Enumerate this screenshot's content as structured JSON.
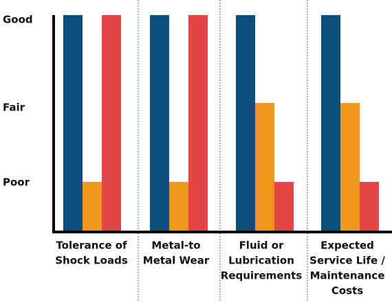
{
  "chart_data": {
    "type": "bar",
    "categories": [
      [
        "Tolerance of",
        "Shock Loads"
      ],
      [
        "Metal-to",
        "Metal Wear"
      ],
      [
        "Fluid or",
        "Lubrication",
        "Requirements"
      ],
      [
        "Expected",
        "Service Life /",
        "Maintenance",
        "Costs"
      ]
    ],
    "y_ticks": [
      "Poor",
      "Fair",
      "Good"
    ],
    "series": [
      {
        "color": "#0b4f7c",
        "values": [
          3,
          3,
          3,
          3
        ]
      },
      {
        "color": "#f0961a",
        "values": [
          1,
          1,
          2,
          2
        ]
      },
      {
        "color": "#e34548",
        "values": [
          3,
          3,
          1,
          1
        ]
      }
    ],
    "ylim": [
      0,
      3
    ],
    "grid": false,
    "separators": "dotted vertical lines between categories",
    "colors": {
      "axis": "#000000",
      "separator": "#2f6d8f",
      "text": "#111111"
    }
  }
}
